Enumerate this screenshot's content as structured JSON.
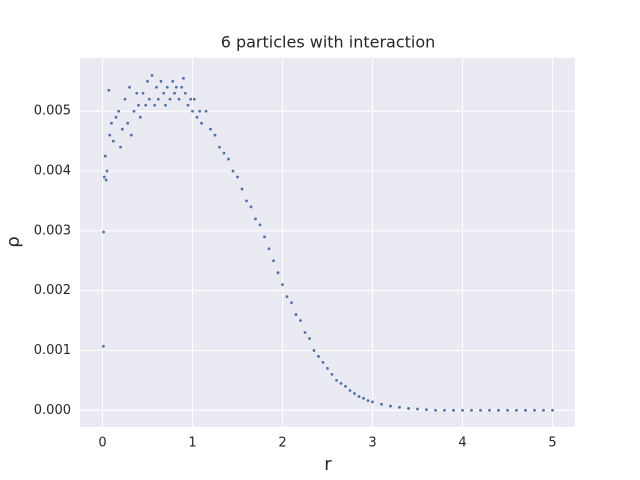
{
  "chart_data": {
    "type": "scatter",
    "title": "6 particles with interaction",
    "xlabel": "r",
    "ylabel": "ρ",
    "color": "#4c72b0",
    "grid": true,
    "background": "#eaeaf2",
    "xlim": [
      -0.25,
      5.25
    ],
    "ylim": [
      -0.00028,
      0.00589
    ],
    "xticks": [
      0,
      1,
      2,
      3,
      4,
      5
    ],
    "yticks": [
      {
        "value": 0,
        "label": "0.000"
      },
      {
        "value": 0.001,
        "label": "0.001"
      },
      {
        "value": 0.002,
        "label": "0.002"
      },
      {
        "value": 0.003,
        "label": "0.003"
      },
      {
        "value": 0.004,
        "label": "0.004"
      },
      {
        "value": 0.005,
        "label": "0.005"
      }
    ],
    "x": [
      0.01,
      0.012,
      0.02,
      0.03,
      0.04,
      0.05,
      0.07,
      0.08,
      0.1,
      0.12,
      0.15,
      0.18,
      0.2,
      0.22,
      0.25,
      0.28,
      0.3,
      0.32,
      0.35,
      0.38,
      0.4,
      0.42,
      0.45,
      0.48,
      0.5,
      0.52,
      0.55,
      0.58,
      0.6,
      0.62,
      0.65,
      0.68,
      0.7,
      0.72,
      0.75,
      0.78,
      0.8,
      0.82,
      0.85,
      0.88,
      0.9,
      0.92,
      0.95,
      0.98,
      1.0,
      1.02,
      1.05,
      1.08,
      1.1,
      1.15,
      1.2,
      1.25,
      1.3,
      1.35,
      1.4,
      1.45,
      1.5,
      1.55,
      1.6,
      1.65,
      1.7,
      1.75,
      1.8,
      1.85,
      1.9,
      1.95,
      2.0,
      2.05,
      2.1,
      2.15,
      2.2,
      2.25,
      2.3,
      2.35,
      2.4,
      2.45,
      2.5,
      2.55,
      2.6,
      2.65,
      2.7,
      2.75,
      2.8,
      2.85,
      2.9,
      2.95,
      3.0,
      3.1,
      3.2,
      3.3,
      3.4,
      3.5,
      3.6,
      3.7,
      3.8,
      3.9,
      4.0,
      4.1,
      4.2,
      4.3,
      4.4,
      4.5,
      4.6,
      4.7,
      4.8,
      4.9,
      5.0
    ],
    "values": [
      0.00107,
      0.00298,
      0.0039,
      0.00425,
      0.00385,
      0.004,
      0.00535,
      0.0046,
      0.0048,
      0.0045,
      0.0049,
      0.005,
      0.0044,
      0.0047,
      0.0052,
      0.0048,
      0.0054,
      0.0046,
      0.005,
      0.0053,
      0.0051,
      0.0049,
      0.0053,
      0.0051,
      0.0055,
      0.0052,
      0.0056,
      0.0051,
      0.0054,
      0.0052,
      0.0055,
      0.0053,
      0.0051,
      0.0054,
      0.0052,
      0.0055,
      0.0053,
      0.0054,
      0.0052,
      0.0054,
      0.00555,
      0.0053,
      0.0051,
      0.0052,
      0.005,
      0.0052,
      0.0049,
      0.005,
      0.0048,
      0.005,
      0.0047,
      0.0046,
      0.0044,
      0.0043,
      0.0042,
      0.004,
      0.0039,
      0.0037,
      0.0035,
      0.0034,
      0.0032,
      0.0031,
      0.0029,
      0.0027,
      0.0025,
      0.0023,
      0.0021,
      0.0019,
      0.0018,
      0.0016,
      0.0015,
      0.0013,
      0.0012,
      0.001,
      0.0009,
      0.0008,
      0.0007,
      0.0006,
      0.0005,
      0.00045,
      0.0004,
      0.00033,
      0.00028,
      0.00023,
      0.0002,
      0.00016,
      0.00014,
      0.0001,
      7e-05,
      5e-05,
      3e-05,
      2e-05,
      1e-05,
      0,
      0,
      0,
      0,
      0,
      0,
      0,
      0,
      0,
      0,
      0,
      0,
      0,
      0
    ]
  }
}
